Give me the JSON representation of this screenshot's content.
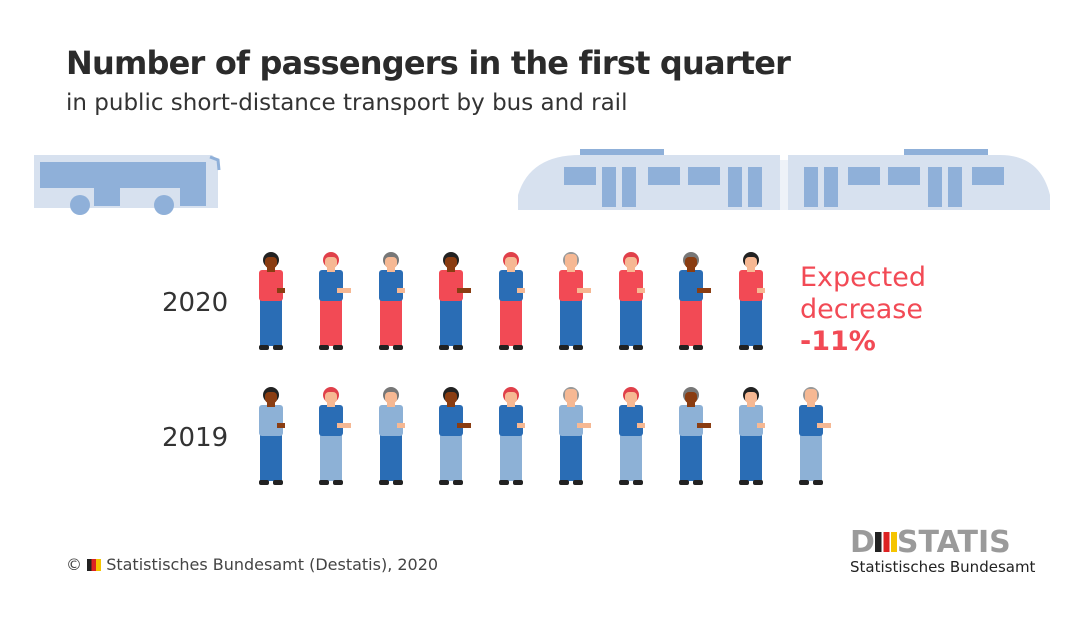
{
  "colors": {
    "red": "#f24a55",
    "blue": "#2a6db5",
    "light": "#8db1d6",
    "vehicle": "#d7e1ef",
    "window": "#8fb0d9"
  },
  "chart_data": {
    "type": "pictogram",
    "title": "Number of passengers in the first quarter",
    "subtitle": "in public short-distance transport by bus and rail",
    "categories": [
      "2020",
      "2019"
    ],
    "values": [
      9,
      10
    ],
    "annotation": {
      "line1": "Expected",
      "line2": "decrease",
      "value": "-11%"
    }
  },
  "footer": {
    "copyright": "©",
    "text": "Statistisches Bundesamt (Destatis), 2020"
  },
  "logo": {
    "word": "DESTATIS",
    "sub": "Statistisches Bundesamt"
  }
}
